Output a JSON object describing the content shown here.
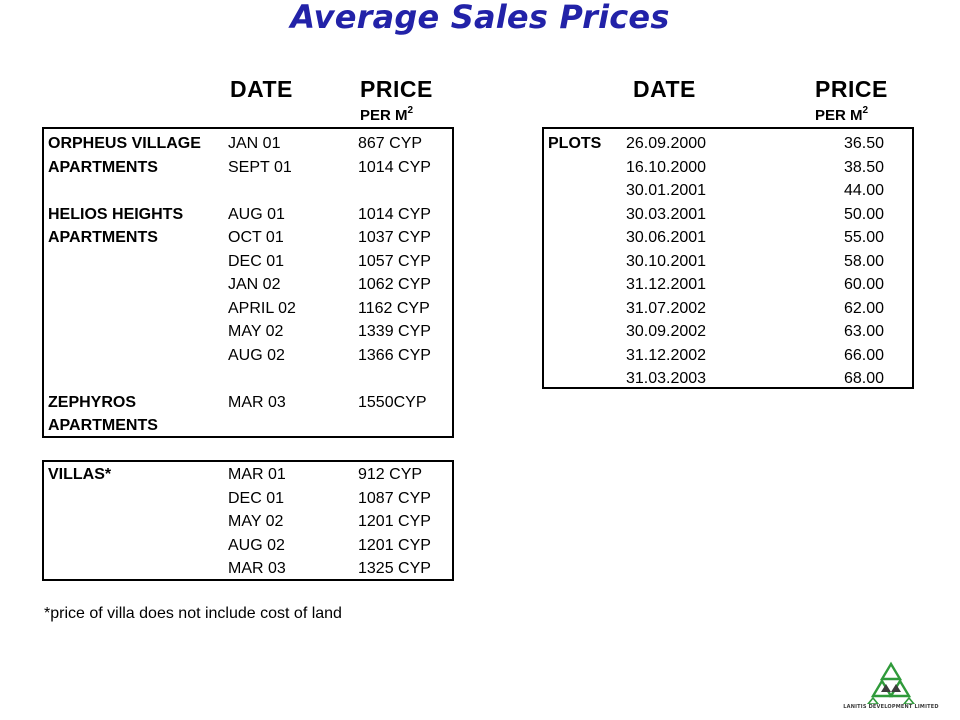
{
  "title": "Average Sales Prices",
  "headers": {
    "date": "DATE",
    "price": "PRICE",
    "per_m2_base": "PER M",
    "per_m2_sup": "2"
  },
  "apartments": [
    {
      "name": "ORPHEUS VILLAGE",
      "date": "JAN 01",
      "price": "867 CYP"
    },
    {
      "name": "APARTMENTS",
      "date": "SEPT 01",
      "price": "1014 CYP"
    },
    {
      "name": "",
      "date": "",
      "price": ""
    },
    {
      "name": "HELIOS HEIGHTS",
      "date": "AUG 01",
      "price": "1014 CYP"
    },
    {
      "name": "APARTMENTS",
      "date": "OCT 01",
      "price": "1037 CYP"
    },
    {
      "name": "",
      "date": "DEC 01",
      "price": "1057 CYP"
    },
    {
      "name": "",
      "date": "JAN 02",
      "price": "1062 CYP"
    },
    {
      "name": "",
      "date": "APRIL 02",
      "price": "1162 CYP"
    },
    {
      "name": "",
      "date": "MAY 02",
      "price": "1339 CYP"
    },
    {
      "name": "",
      "date": "AUG 02",
      "price": "1366 CYP"
    },
    {
      "name": "",
      "date": "",
      "price": ""
    },
    {
      "name": "ZEPHYROS",
      "date": "MAR 03",
      "price": "1550CYP"
    },
    {
      "name": "APARTMENTS",
      "date": "",
      "price": ""
    }
  ],
  "villas": [
    {
      "name": "VILLAS*",
      "date": "MAR 01",
      "price": "912 CYP"
    },
    {
      "name": "",
      "date": "DEC 01",
      "price": "1087 CYP"
    },
    {
      "name": "",
      "date": "MAY 02",
      "price": "1201 CYP"
    },
    {
      "name": "",
      "date": "AUG 02",
      "price": "1201 CYP"
    },
    {
      "name": "",
      "date": "MAR 03",
      "price": "1325 CYP"
    }
  ],
  "plots": [
    {
      "name": "PLOTS",
      "date": "26.09.2000",
      "price": "36.50"
    },
    {
      "name": "",
      "date": "16.10.2000",
      "price": "38.50"
    },
    {
      "name": "",
      "date": "30.01.2001",
      "price": "44.00"
    },
    {
      "name": "",
      "date": "30.03.2001",
      "price": "50.00"
    },
    {
      "name": "",
      "date": "30.06.2001",
      "price": "55.00"
    },
    {
      "name": "",
      "date": "30.10.2001",
      "price": "58.00"
    },
    {
      "name": "",
      "date": "31.12.2001",
      "price": "60.00"
    },
    {
      "name": "",
      "date": "31.07.2002",
      "price": "62.00"
    },
    {
      "name": "",
      "date": "30.09.2002",
      "price": "63.00"
    },
    {
      "name": "",
      "date": "31.12.2002",
      "price": "66.00"
    },
    {
      "name": "",
      "date": "31.03.2003",
      "price": "68.00"
    }
  ],
  "footnote": "*price of villa does not include cost of land",
  "logo": {
    "icon": "triangle-mountain-logo-icon",
    "text": "LANITIS DEVELOPMENT LIMITED",
    "color": "#2f9a3a"
  }
}
